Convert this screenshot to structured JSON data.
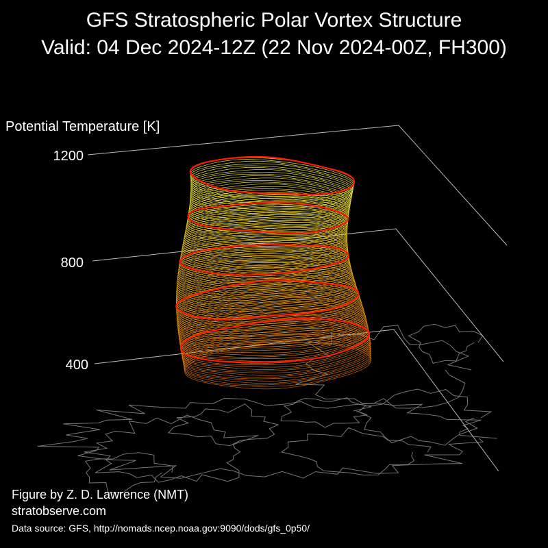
{
  "title": "GFS Stratospheric Polar Vortex Structure",
  "subtitle": "Valid: 04 Dec 2024-12Z  (22 Nov 2024-00Z, FH300)",
  "credits": {
    "author": "Figure by Z. D. Lawrence (NMT)",
    "site": "stratobserve.com",
    "source": "Data source: GFS, http://nomads.ncep.noaa.gov:9090/dods/gfs_0p50/"
  },
  "colors": {
    "background": "#000000",
    "axis_lines": "#bbbbbb",
    "coastlines": "#777777",
    "vortex_edge": "#ff1a00",
    "layer_low": "#e07000",
    "layer_high": "#ffff30"
  },
  "chart_data": {
    "type": "3d-isentropic-stack",
    "zlabel": "Potential Temperature [K]",
    "z_ticks": [
      400,
      800,
      1200
    ],
    "zlim": [
      0,
      1200
    ],
    "highlighted_levels": [
      400,
      600,
      800,
      1000,
      1200
    ],
    "color_scale": "orange (low θ) to yellow (high θ)",
    "grid": true,
    "basemap": "Northern Hemisphere coastlines"
  }
}
